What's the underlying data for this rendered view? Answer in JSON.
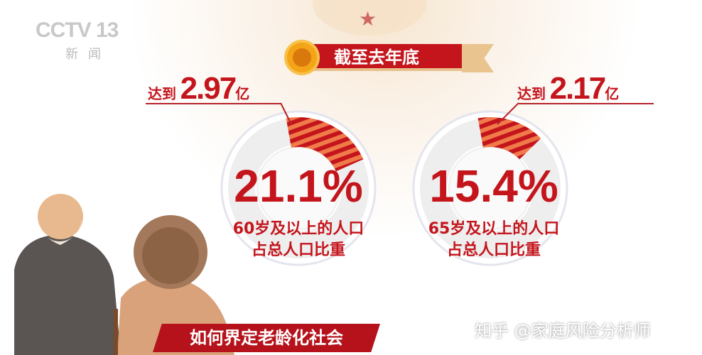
{
  "header": {
    "logo": "CCTV 13",
    "logo_sub": "新闻",
    "ribbon": "截至去年底"
  },
  "banner": "如何界定老龄化社会",
  "watermark": "知乎 @家庭风险分析师",
  "colors": {
    "accent": "#c4151c",
    "wedge": "#e0502f",
    "ring": "#eeeeee"
  },
  "chart_data": [
    {
      "type": "pie",
      "value_percent": 21.1,
      "label": "21.1%",
      "reach_prefix": "达到",
      "reach_value": "2.97",
      "reach_unit": "亿",
      "desc_line1": "60岁及以上的人口",
      "desc_line2": "占总人口比重"
    },
    {
      "type": "pie",
      "value_percent": 15.4,
      "label": "15.4%",
      "reach_prefix": "达到",
      "reach_value": "2.17",
      "reach_unit": "亿",
      "desc_line1": "65岁及以上的人口",
      "desc_line2": "占总人口比重"
    }
  ]
}
